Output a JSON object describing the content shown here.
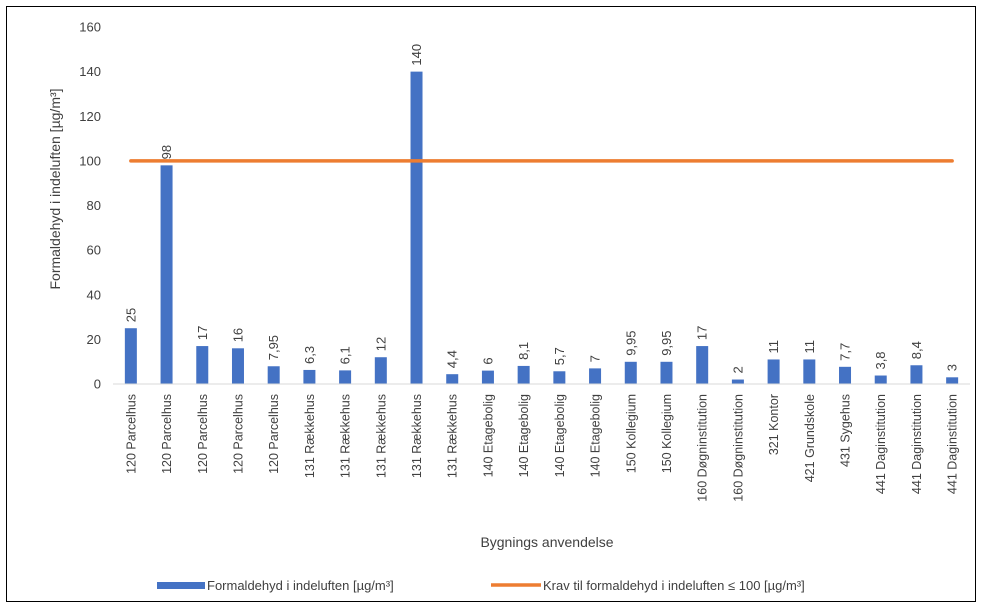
{
  "chart_data": {
    "type": "bar",
    "categories": [
      "120 Parcelhus",
      "120 Parcelhus",
      "120 Parcelhus",
      "120 Parcelhus",
      "120 Parcelhus",
      "131 Rækkehus",
      "131 Rækkehus",
      "131 Rækkehus",
      "131 Rækkehus",
      "131 Rækkehus",
      "140 Etagebolig",
      "140 Etagebolig",
      "140 Etagebolig",
      "140 Etagebolig",
      "150 Kollegium",
      "150 Kollegium",
      "160 Døgninstitution",
      "160 Døgninstitution",
      "321 Kontor",
      "421 Grundskole",
      "431 Sygehus",
      "441 Daginstitution",
      "441 Daginstitution",
      "441 Daginstitution"
    ],
    "series": [
      {
        "name": "Formaldehyd i indeluften [µg/m³]",
        "type": "bar",
        "color": "#4472C4",
        "values": [
          25,
          98,
          17,
          16,
          7.95,
          6.3,
          6.1,
          12,
          140,
          4.4,
          6,
          8.1,
          5.7,
          7,
          9.95,
          9.95,
          17,
          2,
          11,
          11,
          7.7,
          3.8,
          8.4,
          3
        ],
        "labels": [
          "25",
          "98",
          "17",
          "16",
          "7,95",
          "6,3",
          "6,1",
          "12",
          "140",
          "4,4",
          "6",
          "8,1",
          "5,7",
          "7",
          "9,95",
          "9,95",
          "17",
          "2",
          "11",
          "11",
          "7,7",
          "3,8",
          "8,4",
          "3"
        ]
      },
      {
        "name": "Krav til formaldehyd i indeluften ≤ 100  [µg/m³]",
        "type": "line",
        "color": "#ED7D31",
        "values": [
          100,
          100,
          100,
          100,
          100,
          100,
          100,
          100,
          100,
          100,
          100,
          100,
          100,
          100,
          100,
          100,
          100,
          100,
          100,
          100,
          100,
          100,
          100,
          100
        ]
      }
    ],
    "title": "",
    "xlabel": "Bygnings anvendelse",
    "ylabel": "Formaldehyd i indeluften [µg/m³]",
    "ylim": [
      0,
      160
    ],
    "yticks": [
      0,
      20,
      40,
      60,
      80,
      100,
      120,
      140,
      160
    ],
    "grid": false,
    "legend_position": "bottom"
  }
}
